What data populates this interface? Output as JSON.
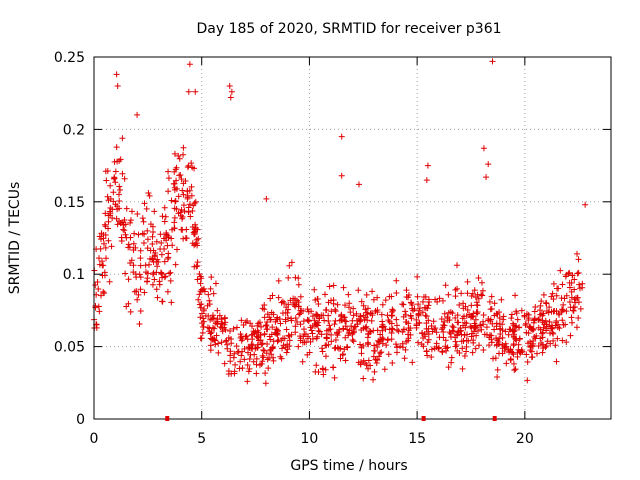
{
  "chart_data": {
    "type": "scatter",
    "title": "Day 185 of 2020, SRMTID for receiver p361",
    "xlabel": "GPS time / hours",
    "ylabel": "SRMTID / TECUs",
    "xlim": [
      0,
      24
    ],
    "ylim": [
      0,
      0.25
    ],
    "x_ticks": [
      0,
      5,
      10,
      15,
      20
    ],
    "x_tick_labels": [
      "0",
      "5",
      "10",
      "15",
      "20"
    ],
    "y_ticks": [
      0,
      0.05,
      0.1,
      0.15,
      0.2,
      0.25
    ],
    "y_tick_labels": [
      "0",
      "0.05",
      "0.1",
      "0.15",
      "0.2",
      "0.25"
    ],
    "grid": true,
    "marker": "+",
    "color": "#e00000",
    "zero_markers_x": [
      3.4,
      15.3,
      18.6
    ],
    "series": [
      {
        "name": "SRMTID",
        "trend": [
          {
            "x": 0.0,
            "y": 0.085,
            "spread": 0.03
          },
          {
            "x": 0.5,
            "y": 0.12,
            "spread": 0.035
          },
          {
            "x": 1.0,
            "y": 0.16,
            "spread": 0.035
          },
          {
            "x": 1.5,
            "y": 0.125,
            "spread": 0.035
          },
          {
            "x": 2.0,
            "y": 0.11,
            "spread": 0.035
          },
          {
            "x": 2.5,
            "y": 0.12,
            "spread": 0.035
          },
          {
            "x": 3.0,
            "y": 0.1,
            "spread": 0.035
          },
          {
            "x": 3.5,
            "y": 0.13,
            "spread": 0.035
          },
          {
            "x": 4.0,
            "y": 0.15,
            "spread": 0.035
          },
          {
            "x": 4.5,
            "y": 0.16,
            "spread": 0.035
          },
          {
            "x": 5.0,
            "y": 0.075,
            "spread": 0.025
          },
          {
            "x": 5.5,
            "y": 0.07,
            "spread": 0.02
          },
          {
            "x": 6.0,
            "y": 0.06,
            "spread": 0.02
          },
          {
            "x": 6.5,
            "y": 0.045,
            "spread": 0.02
          },
          {
            "x": 7.0,
            "y": 0.05,
            "spread": 0.02
          },
          {
            "x": 8.0,
            "y": 0.055,
            "spread": 0.022
          },
          {
            "x": 9.0,
            "y": 0.07,
            "spread": 0.025
          },
          {
            "x": 10.0,
            "y": 0.065,
            "spread": 0.025
          },
          {
            "x": 11.0,
            "y": 0.06,
            "spread": 0.025
          },
          {
            "x": 12.0,
            "y": 0.065,
            "spread": 0.025
          },
          {
            "x": 13.0,
            "y": 0.06,
            "spread": 0.025
          },
          {
            "x": 14.0,
            "y": 0.065,
            "spread": 0.025
          },
          {
            "x": 15.0,
            "y": 0.07,
            "spread": 0.025
          },
          {
            "x": 16.0,
            "y": 0.06,
            "spread": 0.025
          },
          {
            "x": 17.0,
            "y": 0.065,
            "spread": 0.025
          },
          {
            "x": 18.0,
            "y": 0.07,
            "spread": 0.025
          },
          {
            "x": 19.0,
            "y": 0.055,
            "spread": 0.022
          },
          {
            "x": 20.0,
            "y": 0.055,
            "spread": 0.022
          },
          {
            "x": 21.0,
            "y": 0.065,
            "spread": 0.025
          },
          {
            "x": 22.0,
            "y": 0.08,
            "spread": 0.025
          },
          {
            "x": 22.7,
            "y": 0.085,
            "spread": 0.025
          }
        ],
        "sample_count": 1400,
        "outliers": [
          {
            "x": 1.05,
            "y": 0.238
          },
          {
            "x": 1.1,
            "y": 0.23
          },
          {
            "x": 2.0,
            "y": 0.21
          },
          {
            "x": 4.45,
            "y": 0.245
          },
          {
            "x": 4.4,
            "y": 0.226
          },
          {
            "x": 4.7,
            "y": 0.226
          },
          {
            "x": 6.3,
            "y": 0.23
          },
          {
            "x": 6.4,
            "y": 0.226
          },
          {
            "x": 6.35,
            "y": 0.222
          },
          {
            "x": 11.5,
            "y": 0.195
          },
          {
            "x": 18.5,
            "y": 0.247
          },
          {
            "x": 18.1,
            "y": 0.187
          },
          {
            "x": 18.3,
            "y": 0.176
          },
          {
            "x": 15.5,
            "y": 0.175
          },
          {
            "x": 15.45,
            "y": 0.165
          },
          {
            "x": 12.3,
            "y": 0.162
          },
          {
            "x": 11.5,
            "y": 0.168
          },
          {
            "x": 18.2,
            "y": 0.167
          },
          {
            "x": 8.0,
            "y": 0.152
          },
          {
            "x": 22.8,
            "y": 0.148
          }
        ]
      }
    ]
  }
}
